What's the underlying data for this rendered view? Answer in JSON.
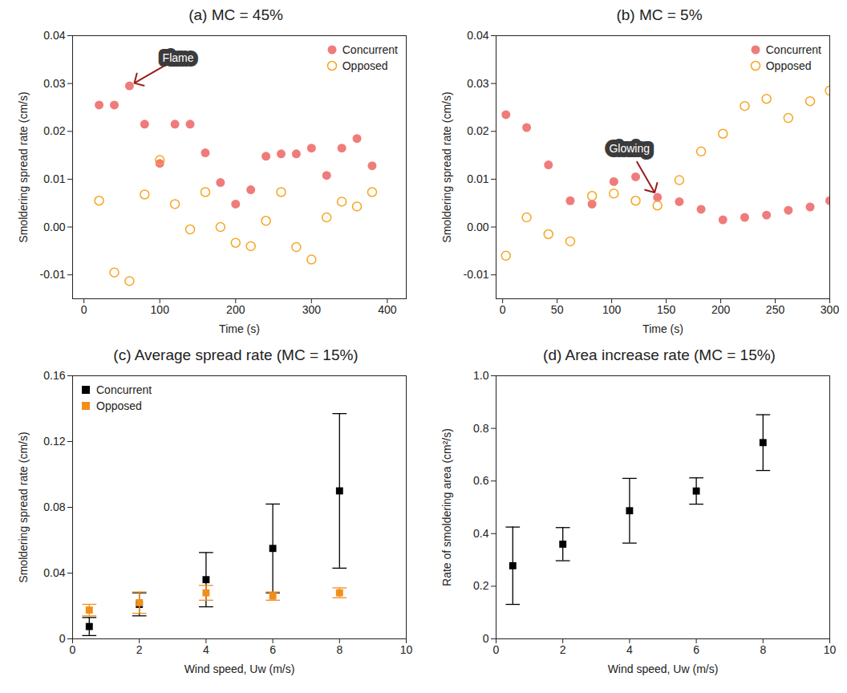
{
  "chart_data": [
    {
      "type": "scatter",
      "title": "(a) MC = 45%",
      "x_label": "Time (s)",
      "y_label": "Smoldering spread rate (cm/s)",
      "xlim": [
        -15,
        425
      ],
      "xticks": [
        0,
        100,
        200,
        300,
        400
      ],
      "ylim": [
        -0.015,
        0.04
      ],
      "yticks": [
        -0.01,
        {
          "value": 0,
          "label": "0.00"
        },
        0.01,
        0.02,
        0.03,
        0.04
      ],
      "grid": false,
      "legend": "top-right",
      "x": [
        20,
        40,
        60,
        80,
        100,
        120,
        140,
        160,
        180,
        200,
        220,
        240,
        260,
        280,
        300,
        320,
        340,
        360,
        380
      ],
      "series": [
        {
          "name": "Concurrent",
          "color": "#f07b7b",
          "marker": "circle",
          "values": [
            0.0255,
            0.0255,
            0.0295,
            0.0215,
            0.0133,
            0.0215,
            0.0215,
            0.0155,
            0.0093,
            0.0048,
            0.0078,
            0.0148,
            0.0153,
            0.0153,
            0.0165,
            0.0108,
            0.0165,
            0.0185,
            0.0128
          ]
        },
        {
          "name": "Opposed",
          "color": "#f5a623",
          "marker": "open-circle",
          "values": [
            0.0055,
            -0.0095,
            -0.0113,
            0.0068,
            0.014,
            0.0048,
            -0.0005,
            0.0073,
            0.0,
            -0.0033,
            -0.004,
            0.0013,
            0.0073,
            -0.0042,
            -0.0068,
            0.002,
            0.0053,
            0.0043,
            0.0073
          ]
        }
      ],
      "annotations": [
        {
          "text": "Flame",
          "x": 60,
          "y": 0.0295
        }
      ]
    },
    {
      "type": "scatter",
      "title": "(b) MC = 5%",
      "x_label": "Time (s)",
      "y_label": "Smoldering spread rate (cm/s)",
      "xlim": [
        -6,
        300
      ],
      "xticks": [
        0,
        50,
        100,
        150,
        200,
        250,
        300
      ],
      "ylim": [
        -0.015,
        0.04
      ],
      "yticks": [
        -0.01,
        {
          "value": 0,
          "label": "0.00"
        },
        0.01,
        0.02,
        0.03,
        0.04
      ],
      "grid": false,
      "legend": "top-right",
      "x": [
        3,
        22,
        42,
        62,
        82,
        102,
        122,
        142,
        162,
        182,
        202,
        222,
        242,
        262,
        282,
        300
      ],
      "series": [
        {
          "name": "Concurrent",
          "color": "#f07b7b",
          "marker": "circle",
          "values": [
            0.0235,
            0.0208,
            0.013,
            0.0055,
            0.0048,
            0.0095,
            0.0105,
            0.0062,
            0.0053,
            0.0037,
            0.0015,
            0.002,
            0.0025,
            0.0035,
            0.0042,
            0.0055
          ]
        },
        {
          "name": "Opposed",
          "color": "#f5a623",
          "marker": "open-circle",
          "values": [
            -0.006,
            0.002,
            -0.0015,
            -0.003,
            0.0065,
            0.007,
            0.0055,
            0.0045,
            0.0098,
            0.0158,
            0.0195,
            0.0253,
            0.0268,
            0.0228,
            0.0263,
            0.0285
          ]
        }
      ],
      "annotations": [
        {
          "text": "Glowing",
          "x": 142,
          "y": 0.0062
        }
      ]
    },
    {
      "type": "scatter",
      "title": "(c) Average spread rate (MC = 15%)",
      "x_label": "Wind speed, Uw (m/s)",
      "y_label": "Smoldering spread rate (cm/s)",
      "xlim": [
        0,
        10
      ],
      "xticks": [
        0,
        2,
        4,
        6,
        8,
        10
      ],
      "ylim": [
        0,
        0.16
      ],
      "yticks": [
        0,
        0.04,
        0.08,
        0.12,
        0.16
      ],
      "grid": false,
      "legend": "top-left",
      "x": [
        0.5,
        2,
        4,
        6,
        8
      ],
      "series": [
        {
          "name": "Concurrent",
          "color": "#000000",
          "marker": "square",
          "values": [
            0.0075,
            0.021,
            0.036,
            0.055,
            0.09
          ],
          "errors": [
            0.0055,
            0.007,
            0.0165,
            0.027,
            0.047
          ]
        },
        {
          "name": "Opposed",
          "color": "#f28e1c",
          "marker": "square",
          "values": [
            0.0175,
            0.022,
            0.028,
            0.026,
            0.028
          ],
          "errors": [
            0.0035,
            0.0065,
            0.0045,
            0.0025,
            0.003
          ]
        }
      ]
    },
    {
      "type": "scatter",
      "title": "(d) Area increase rate (MC = 15%)",
      "x_label": "Wind speed, Uw (m/s)",
      "y_label": "Rate of smoldering area (cm²/s)",
      "xlim": [
        0,
        10
      ],
      "xticks": [
        0,
        2,
        4,
        6,
        8,
        10
      ],
      "ylim": [
        0,
        1
      ],
      "yticks": [
        0,
        0.2,
        0.4,
        0.6,
        0.8,
        {
          "value": 1,
          "label": "1.0"
        }
      ],
      "grid": false,
      "x": [
        0.5,
        2,
        4,
        6,
        8
      ],
      "series": [
        {
          "color": "#000000",
          "marker": "square",
          "values": [
            0.278,
            0.36,
            0.487,
            0.562,
            0.746
          ],
          "errors": [
            0.147,
            0.063,
            0.123,
            0.05,
            0.106
          ]
        }
      ]
    }
  ]
}
